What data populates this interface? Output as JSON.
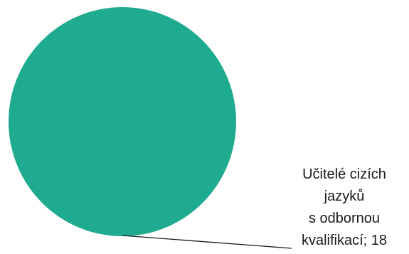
{
  "chart_data": {
    "type": "pie",
    "title": "",
    "slices": [
      {
        "label": "Učitelé cizích jazyků s odbornou kvalifikací",
        "label_lines": [
          "Učitelé cizích",
          "jazyků",
          "s odbornou",
          "kvalifikací;"
        ],
        "value": 18,
        "color": "#1fab8f"
      }
    ],
    "legend": "none",
    "data_labels": "callout",
    "label_separator": "; "
  }
}
